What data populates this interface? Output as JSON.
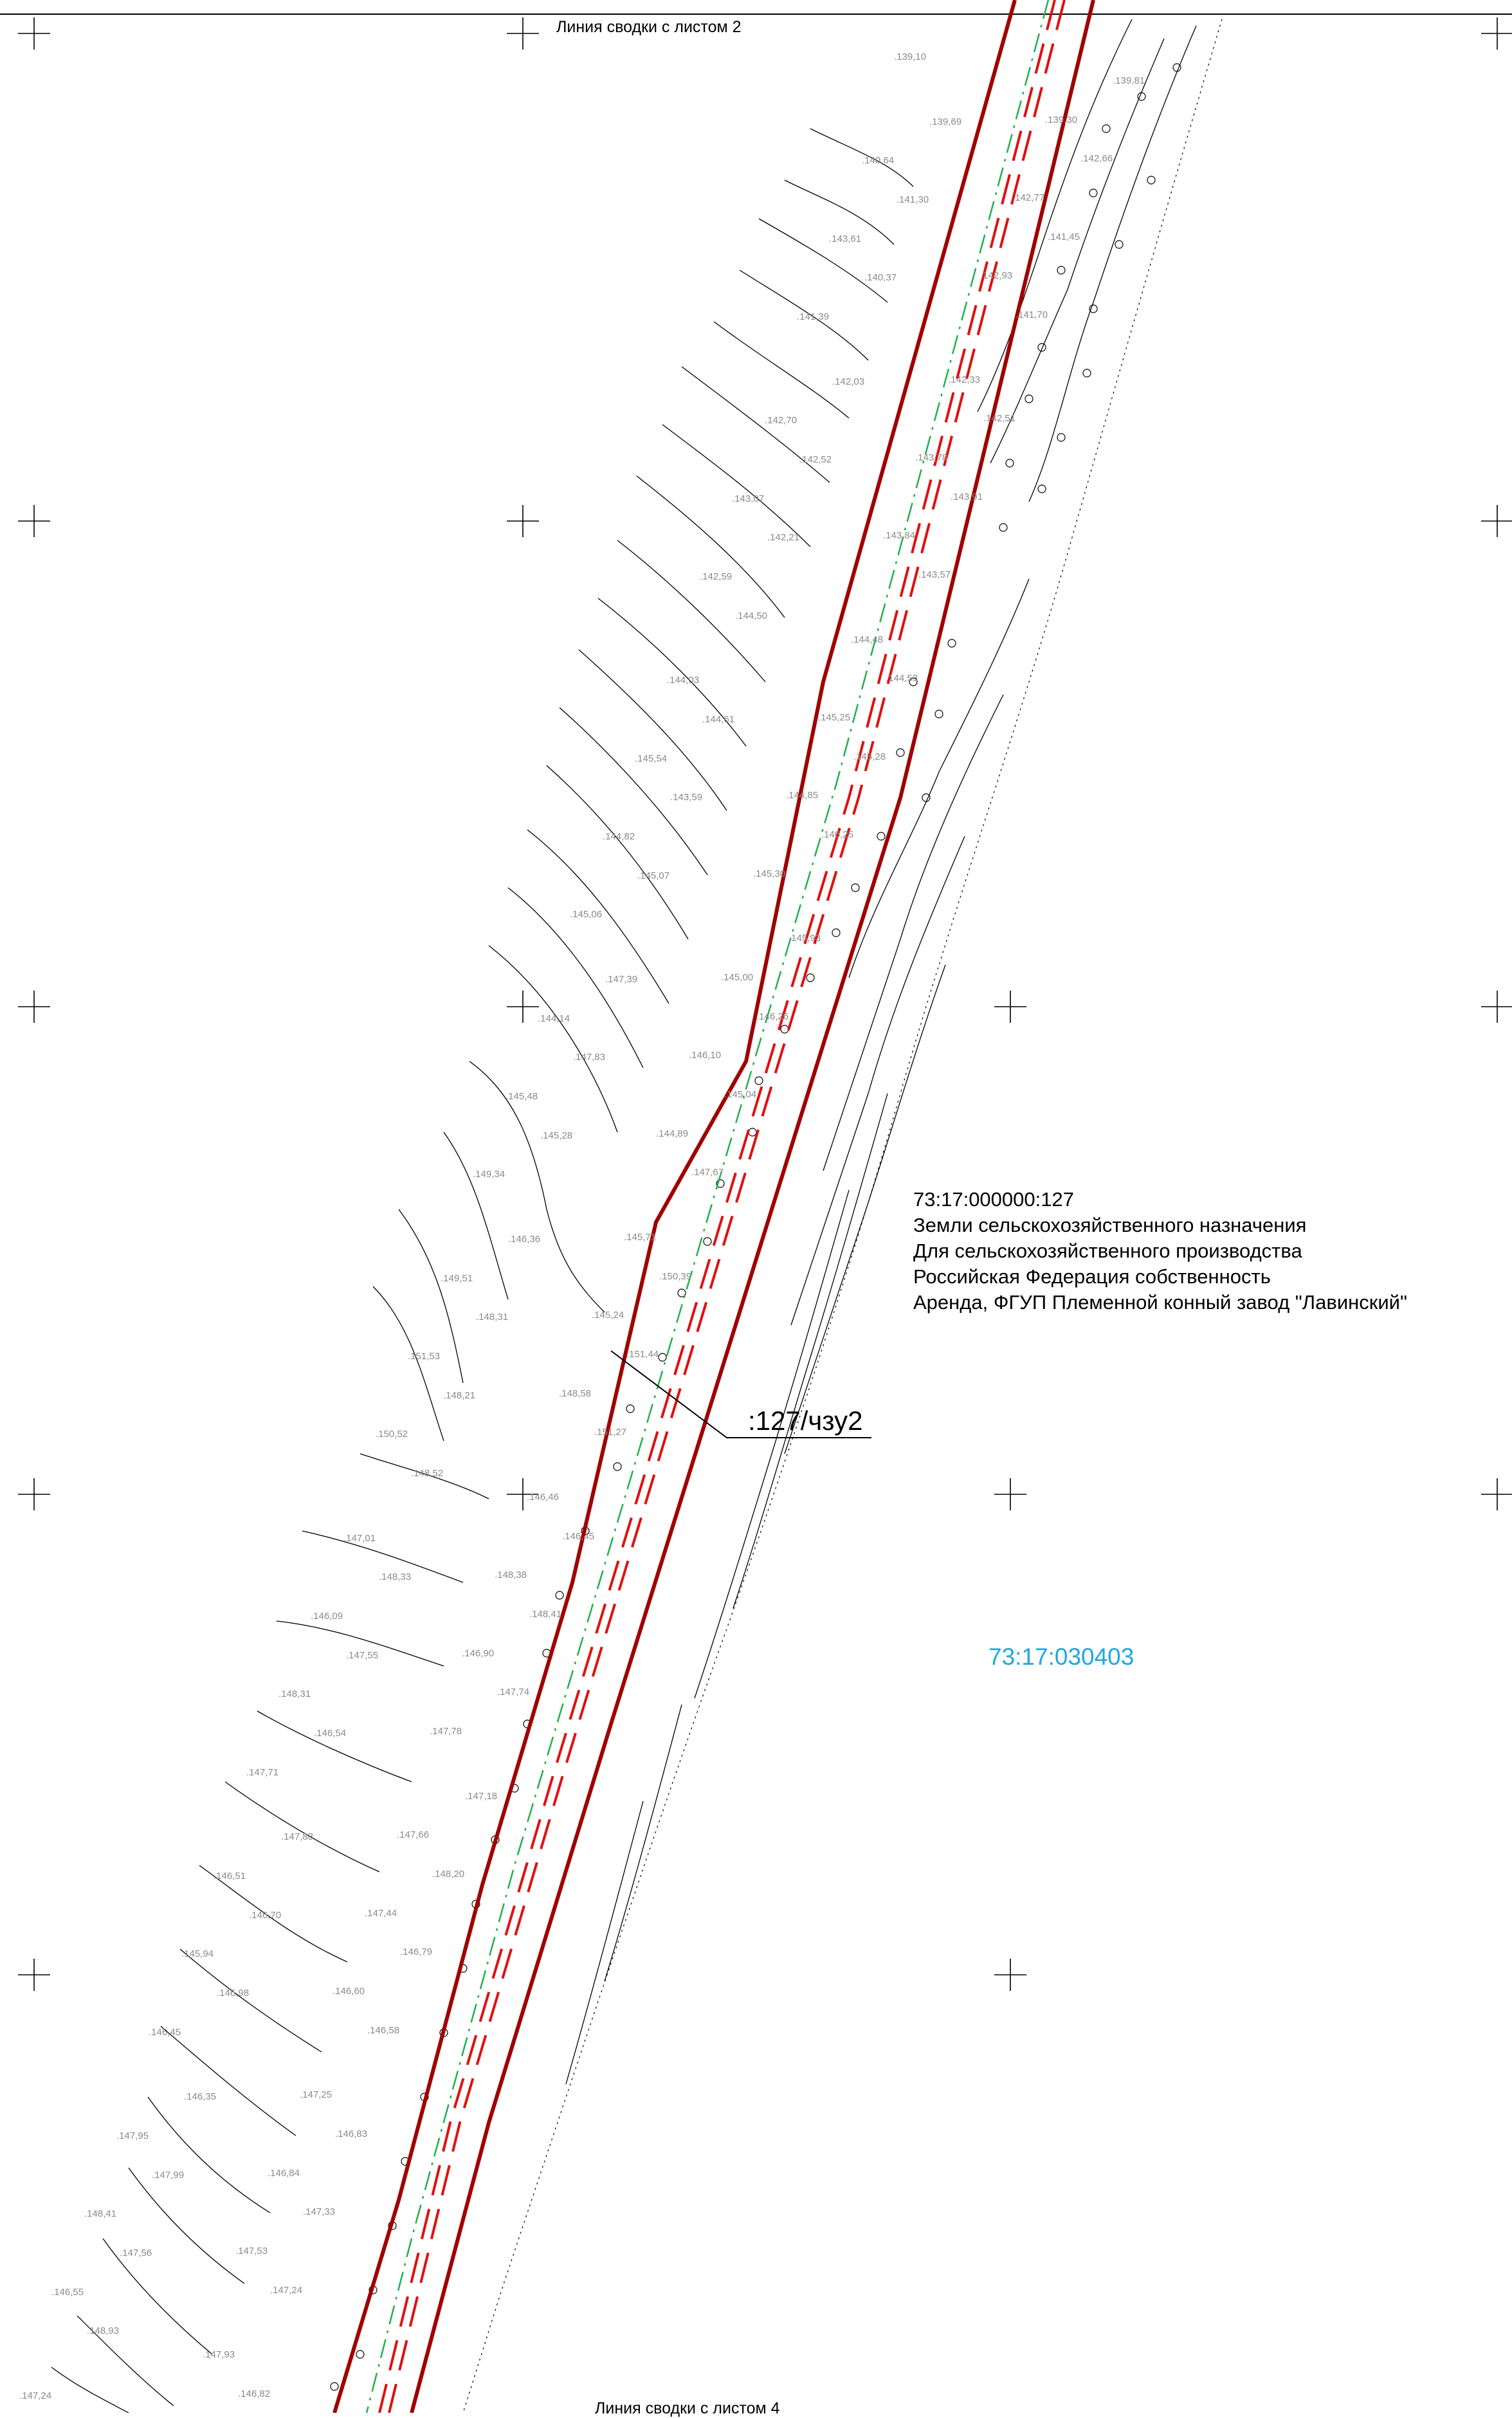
{
  "sheet_link_top": "Линия сводки с листом 2",
  "sheet_link_bottom": "Линия сводки с листом 4",
  "parcel": {
    "cadastral_number": "73:17:000000:127",
    "land_category": "Земли сельскохозяйственного назначения",
    "permitted_use": "Для сельскохозяйственного производства",
    "ownership": "Российская Федерация собственность",
    "encumbrance": "Аренда, ФГУП Племенной конный завод \"Лавинский\""
  },
  "zone_label": ":127/чзу2",
  "quarter_number": "73:17:030403",
  "colors": {
    "boundary": "#a00000",
    "zone_dashed": "#e01010",
    "centerline": "#21b14b",
    "contour": "#000000",
    "elevation_text": "#8a8a8a",
    "quarter_text": "#1fa7e0"
  },
  "elevations": [
    "139,10",
    "139,81",
    "139,69",
    "139,30",
    "140,64",
    "142,66",
    "141,30",
    "142,77",
    "143,61",
    "141,45",
    "140,37",
    "142,93",
    "141,39",
    "141,70",
    "142,03",
    "142,33",
    "142,70",
    "142,51",
    "142,52",
    "143,78",
    "143,07",
    "143,91",
    "142,21",
    "143,84",
    "142,59",
    "143,57",
    "144,50",
    "144,48",
    "144,03",
    "144,53",
    "144,61",
    "145,25",
    "145,54",
    "145,28",
    "143,59",
    "144,85",
    "144,82",
    "146,25",
    "145,07",
    "145,30",
    "145,06",
    "145,93",
    "147,39",
    "145,00",
    "144,14",
    "146,26",
    "147,83",
    "146,10",
    "145,48",
    "145,04",
    "145,28",
    "144,89",
    "149,34",
    "147,67",
    "146,36",
    "145,71",
    "149,51",
    "150,39",
    "148,31",
    "145,24",
    "151,53",
    "151,44",
    "148,21",
    "148,58",
    "150,52",
    "151,27",
    "148,52",
    "146,46",
    "147,01",
    "146,45",
    "148,33",
    "148,38",
    "146,09",
    "148,41",
    "147,55",
    "146,90",
    "148,31",
    "147,74",
    "146,54",
    "147,78",
    "147,71",
    "147,18",
    "147,88",
    "147,66",
    "146,51",
    "148,20",
    "146,70",
    "147,44",
    "145,94",
    "146,79",
    "146,98",
    "146,60",
    "146,45",
    "146,58",
    "146,35",
    "147,25",
    "147,95",
    "146,83",
    "147,99",
    "146,84",
    "148,41",
    "147,33",
    "147,56",
    "147,53",
    "146,55",
    "147,24",
    "148,93",
    "147,93",
    "147,24",
    "146,82"
  ]
}
